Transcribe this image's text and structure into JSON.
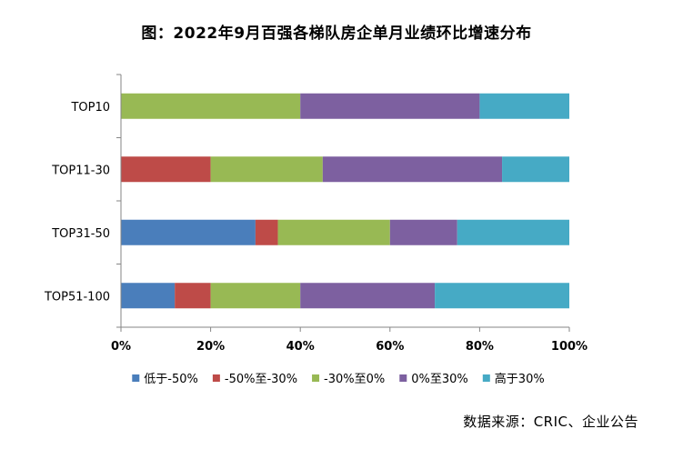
{
  "title": "图：2022年9月百强各梯队房企单月业绩环比增速分布",
  "source": "数据来源：CRIC、企业公告",
  "chart_data": {
    "type": "bar",
    "orientation": "horizontal",
    "stacked": "percent",
    "categories": [
      "TOP10",
      "TOP11-30",
      "TOP31-50",
      "TOP51-100"
    ],
    "series": [
      {
        "name": "低于-50%",
        "color": "#4a7ebb",
        "values": [
          0,
          0,
          30,
          12
        ]
      },
      {
        "name": "-50%至-30%",
        "color": "#be4b48",
        "values": [
          0,
          20,
          5,
          8
        ]
      },
      {
        "name": "-30%至0%",
        "color": "#98b954",
        "values": [
          40,
          25,
          25,
          20
        ]
      },
      {
        "name": "0%至30%",
        "color": "#7d60a0",
        "values": [
          40,
          40,
          15,
          30
        ]
      },
      {
        "name": "高于30%",
        "color": "#46aac5",
        "values": [
          20,
          15,
          25,
          30
        ]
      }
    ],
    "xlim": [
      0,
      100
    ],
    "xticks": [
      "0%",
      "20%",
      "40%",
      "60%",
      "80%",
      "100%"
    ],
    "xlabel": "",
    "ylabel": "",
    "legend": "bottom",
    "grid": false
  }
}
